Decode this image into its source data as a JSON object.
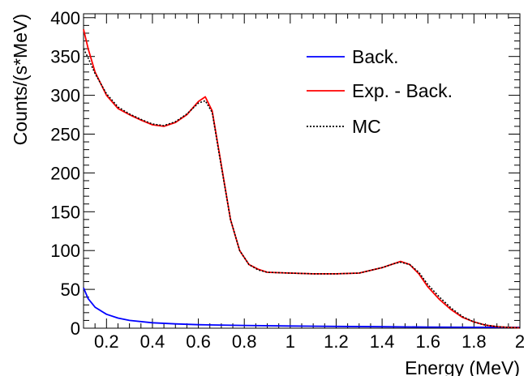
{
  "chart_data": {
    "type": "line",
    "xlabel": "Energy (MeV)",
    "ylabel": "Counts/(s*MeV)",
    "xlim": [
      0.1,
      2.0
    ],
    "ylim": [
      0,
      405
    ],
    "xticks": [
      "0.2",
      "0.4",
      "0.6",
      "0.8",
      "1",
      "1.2",
      "1.4",
      "1.6",
      "1.8",
      "2"
    ],
    "yticks": [
      "0",
      "50",
      "100",
      "150",
      "200",
      "250",
      "300",
      "350",
      "400"
    ],
    "grid": false,
    "legend_position": "top-right",
    "series": [
      {
        "name": "Back.",
        "color": "#0000ff",
        "style": "solid",
        "x": [
          0.1,
          0.12,
          0.15,
          0.2,
          0.25,
          0.3,
          0.4,
          0.5,
          0.6,
          0.8,
          1.0,
          1.2,
          1.4,
          1.6,
          1.8,
          2.0
        ],
        "y": [
          52,
          38,
          27,
          18,
          13,
          10,
          7,
          5.5,
          4.5,
          3.5,
          2.8,
          2.3,
          1.9,
          1.5,
          1.2,
          1.0
        ]
      },
      {
        "name": "Exp. - Back.",
        "color": "#ff0000",
        "style": "solid",
        "x": [
          0.1,
          0.12,
          0.15,
          0.2,
          0.25,
          0.3,
          0.35,
          0.4,
          0.45,
          0.5,
          0.55,
          0.6,
          0.63,
          0.66,
          0.7,
          0.74,
          0.78,
          0.82,
          0.86,
          0.9,
          1.0,
          1.1,
          1.2,
          1.3,
          1.4,
          1.45,
          1.48,
          1.52,
          1.56,
          1.6,
          1.65,
          1.7,
          1.75,
          1.8,
          1.85,
          1.9,
          1.95,
          2.0
        ],
        "y": [
          385,
          360,
          330,
          300,
          283,
          275,
          268,
          262,
          260,
          265,
          275,
          292,
          298,
          280,
          210,
          140,
          100,
          82,
          76,
          72,
          71,
          70,
          70,
          71,
          78,
          83,
          86,
          82,
          70,
          53,
          37,
          24,
          14,
          8,
          4,
          2,
          1,
          0.5
        ]
      },
      {
        "name": "MC",
        "color": "#000000",
        "style": "dotted",
        "x": [
          0.1,
          0.12,
          0.15,
          0.2,
          0.25,
          0.3,
          0.35,
          0.4,
          0.45,
          0.5,
          0.55,
          0.6,
          0.63,
          0.66,
          0.7,
          0.74,
          0.78,
          0.82,
          0.86,
          0.9,
          1.0,
          1.1,
          1.2,
          1.3,
          1.4,
          1.45,
          1.48,
          1.52,
          1.56,
          1.6,
          1.65,
          1.7,
          1.75,
          1.8,
          1.85,
          1.9,
          1.95,
          2.0
        ],
        "y": [
          360,
          348,
          328,
          302,
          285,
          276,
          269,
          263,
          261,
          266,
          276,
          290,
          293,
          278,
          208,
          140,
          100,
          82,
          75,
          72,
          71,
          70,
          70,
          71,
          78,
          83,
          85,
          82,
          72,
          56,
          40,
          26,
          15,
          8,
          4,
          2,
          1,
          0.5
        ]
      }
    ]
  }
}
